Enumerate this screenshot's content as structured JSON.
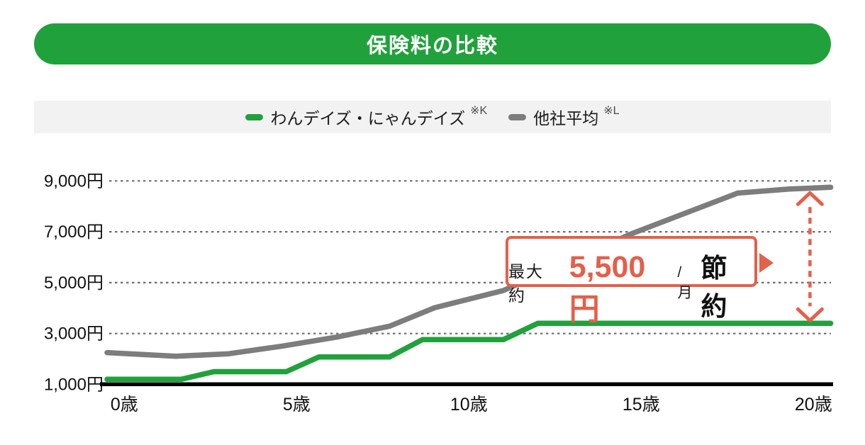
{
  "header": {
    "title": "保険料の比較"
  },
  "colors": {
    "green": "#21a13c",
    "gray": "#7d7d7d",
    "coral": "#e3604b"
  },
  "legend": {
    "series1": {
      "label": "わんデイズ・にゃんデイズ",
      "note": "※K",
      "color": "#21a13c"
    },
    "series2": {
      "label": "他社平均",
      "note": "※L",
      "color": "#7d7d7d"
    }
  },
  "callout": {
    "prefix": "最大 約",
    "amount": "5,500円",
    "unit": "/月",
    "suffix": "節約"
  },
  "chart_data": {
    "type": "line",
    "title": "保険料の比較",
    "x_unit": "歳",
    "y_unit": "円",
    "xlim": [
      -0.5,
      20.5
    ],
    "ylim": [
      1000,
      9400
    ],
    "x_ticks": [
      0,
      5,
      10,
      15,
      20
    ],
    "x_tick_labels": [
      "0歳",
      "5歳",
      "10歳",
      "15歳",
      "20歳"
    ],
    "y_ticks": [
      1000,
      3000,
      5000,
      7000,
      9000
    ],
    "y_tick_labels": [
      "1,000円",
      "3,000円",
      "5,000円",
      "7,000円",
      "9,000円"
    ],
    "grid": "horizontal-dashed",
    "legend_position": "top-center",
    "series": [
      {
        "name": "わんデイズ・にゃんデイズ",
        "note": "※K",
        "color": "#21a13c",
        "points": [
          [
            -0.5,
            1200
          ],
          [
            1.65,
            1200
          ],
          [
            2.6,
            1500
          ],
          [
            4.7,
            1500
          ],
          [
            5.65,
            2080
          ],
          [
            7.7,
            2080
          ],
          [
            8.65,
            2760
          ],
          [
            11,
            2760
          ],
          [
            12,
            3400
          ],
          [
            20.5,
            3400
          ]
        ]
      },
      {
        "name": "他社平均",
        "note": "※L",
        "color": "#7d7d7d",
        "points": [
          [
            -0.5,
            2250
          ],
          [
            1.5,
            2110
          ],
          [
            3,
            2200
          ],
          [
            4.6,
            2510
          ],
          [
            6.2,
            2870
          ],
          [
            7.7,
            3290
          ],
          [
            9,
            4010
          ],
          [
            11,
            4690
          ],
          [
            14.7,
            6910
          ],
          [
            17.8,
            8520
          ],
          [
            19.3,
            8680
          ],
          [
            20.5,
            8750
          ]
        ]
      }
    ],
    "annotation": {
      "label": "最大 約5,500円/月 節約",
      "age": 19.9,
      "top_value": 8750,
      "bottom_value": 3400,
      "color": "#e3604b"
    }
  }
}
